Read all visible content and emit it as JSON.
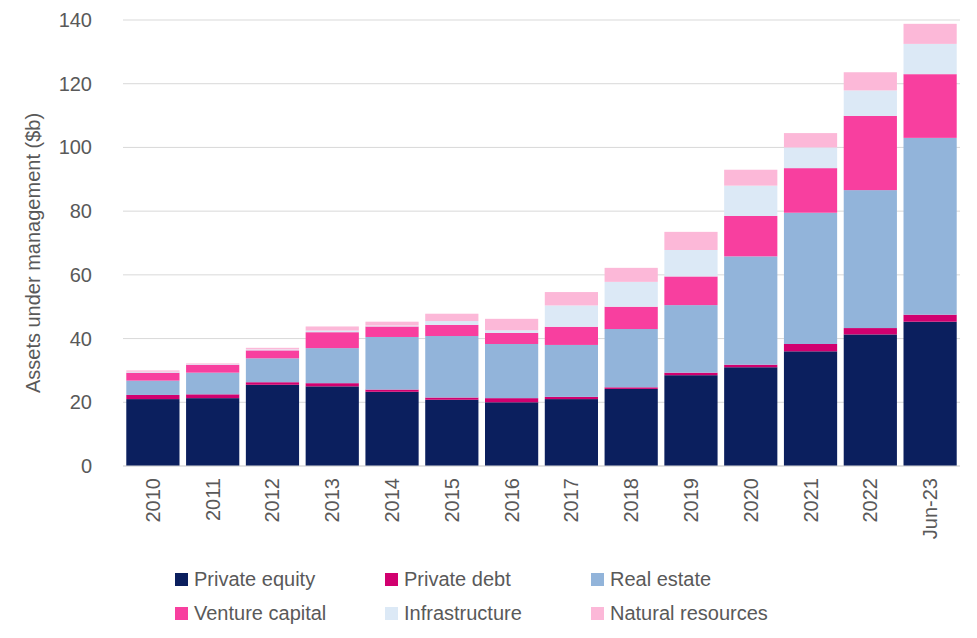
{
  "chart_data": {
    "type": "bar",
    "stacked": true,
    "grid": true,
    "legend": "bottom",
    "y_label": "Assets under management ($b)",
    "categories": [
      "2010",
      "2011",
      "2012",
      "2013",
      "2014",
      "2015",
      "2016",
      "2017",
      "2018",
      "2019",
      "2020",
      "2021",
      "2022",
      "Jun-23"
    ],
    "ylim": [
      0,
      140
    ],
    "yticks": [
      0,
      20,
      40,
      60,
      80,
      100,
      120,
      140
    ],
    "series": [
      {
        "name": "Private equity",
        "color": "#0b1f5e",
        "values": [
          21,
          21.3,
          25.5,
          25,
          23.3,
          20.8,
          20,
          21,
          24.2,
          28.5,
          31,
          36,
          41.3,
          45.3
        ]
      },
      {
        "name": "Private debt",
        "color": "#d1006f",
        "values": [
          1.3,
          1.2,
          0.8,
          1,
          0.7,
          0.7,
          1.3,
          0.7,
          0.5,
          0.8,
          0.8,
          2.3,
          2,
          2.2
        ]
      },
      {
        "name": "Real estate",
        "color": "#92b4da",
        "values": [
          4.5,
          6.8,
          7.5,
          11,
          16.5,
          19.3,
          17,
          16.3,
          18.3,
          21.2,
          34,
          41.2,
          43.3,
          55.5
        ]
      },
      {
        "name": "Venture capital",
        "color": "#f83f9f",
        "values": [
          2.5,
          2.5,
          2.5,
          5,
          3.3,
          3.5,
          3.5,
          5.7,
          7,
          9,
          12.7,
          14,
          23.3,
          20
        ]
      },
      {
        "name": "Infrastructure",
        "color": "#dce9f6",
        "values": [
          0.3,
          0.2,
          0.3,
          0.5,
          0.3,
          1.2,
          0.8,
          6.7,
          7.8,
          8.3,
          9.5,
          6.5,
          8,
          9.5
        ]
      },
      {
        "name": "Natural resources",
        "color": "#fcb8d8",
        "values": [
          0.4,
          0.2,
          0.5,
          1.3,
          1.2,
          2.3,
          3.6,
          4.2,
          4.4,
          5.7,
          5,
          4.5,
          5.7,
          6.3
        ]
      }
    ]
  }
}
